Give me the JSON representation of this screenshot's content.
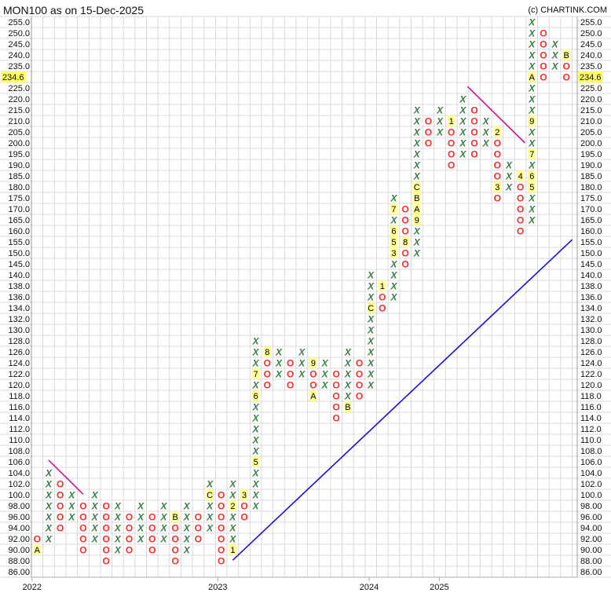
{
  "chart_data": {
    "type": "point-and-figure",
    "title": "MON100 as on 15-Dec-2025",
    "copyright": "(c) CHARTINK.COM",
    "current_price": "234.6",
    "price_levels": [
      255,
      250,
      245,
      240,
      235,
      230,
      225,
      220,
      215,
      210,
      205,
      200,
      195,
      190,
      185,
      180,
      175,
      170,
      165,
      160,
      155,
      150,
      145,
      140,
      138,
      136,
      134,
      132,
      130,
      128,
      126,
      124,
      122,
      120,
      118,
      116,
      114,
      112,
      110,
      108,
      106,
      104,
      102,
      100,
      98,
      96,
      94,
      92,
      90,
      88,
      86
    ],
    "x_labels": [
      "2022",
      "2023",
      "2024",
      "2025"
    ],
    "columns": [
      {
        "type": "O",
        "top": 92,
        "bottom": 90,
        "markers": {
          "90": "A"
        }
      },
      {
        "type": "X",
        "top": 104,
        "bottom": 92,
        "markers": {}
      },
      {
        "type": "O",
        "top": 102,
        "bottom": 94,
        "markers": {}
      },
      {
        "type": "X",
        "top": 100,
        "bottom": 96,
        "markers": {}
      },
      {
        "type": "O",
        "top": 98,
        "bottom": 90,
        "markers": {}
      },
      {
        "type": "X",
        "top": 100,
        "bottom": 92,
        "markers": {}
      },
      {
        "type": "O",
        "top": 98,
        "bottom": 88,
        "markers": {}
      },
      {
        "type": "X",
        "top": 98,
        "bottom": 90,
        "markers": {}
      },
      {
        "type": "O",
        "top": 96,
        "bottom": 90,
        "markers": {}
      },
      {
        "type": "X",
        "top": 98,
        "bottom": 92,
        "markers": {}
      },
      {
        "type": "O",
        "top": 96,
        "bottom": 90,
        "markers": {}
      },
      {
        "type": "X",
        "top": 98,
        "bottom": 92,
        "markers": {}
      },
      {
        "type": "O",
        "top": 96,
        "bottom": 88,
        "markers": {
          "96": "B"
        }
      },
      {
        "type": "X",
        "top": 98,
        "bottom": 90,
        "markers": {}
      },
      {
        "type": "O",
        "top": 96,
        "bottom": 92,
        "markers": {}
      },
      {
        "type": "X",
        "top": 102,
        "bottom": 94,
        "markers": {
          "100": "C"
        }
      },
      {
        "type": "O",
        "top": 100,
        "bottom": 88,
        "markers": {}
      },
      {
        "type": "X",
        "top": 102,
        "bottom": 90,
        "markers": {
          "90": "1",
          "98": "2"
        }
      },
      {
        "type": "O",
        "top": 100,
        "bottom": 96,
        "markers": {
          "100": "3"
        }
      },
      {
        "type": "X",
        "top": 128,
        "bottom": 98,
        "markers": {
          "106": "5",
          "118": "6",
          "122": "7"
        }
      },
      {
        "type": "O",
        "top": 126,
        "bottom": 120,
        "markers": {
          "126": "8"
        }
      },
      {
        "type": "X",
        "top": 126,
        "bottom": 122,
        "markers": {}
      },
      {
        "type": "O",
        "top": 124,
        "bottom": 120,
        "markers": {}
      },
      {
        "type": "X",
        "top": 126,
        "bottom": 122,
        "markers": {}
      },
      {
        "type": "O",
        "top": 124,
        "bottom": 118,
        "markers": {
          "124": "9",
          "118": "A"
        }
      },
      {
        "type": "X",
        "top": 124,
        "bottom": 120,
        "markers": {}
      },
      {
        "type": "O",
        "top": 122,
        "bottom": 114,
        "markers": {}
      },
      {
        "type": "X",
        "top": 126,
        "bottom": 116,
        "markers": {
          "116": "B"
        }
      },
      {
        "type": "O",
        "top": 124,
        "bottom": 118,
        "markers": {}
      },
      {
        "type": "X",
        "top": 140,
        "bottom": 120,
        "markers": {
          "134": "C"
        }
      },
      {
        "type": "O",
        "top": 138,
        "bottom": 134,
        "markers": {
          "138": "1"
        }
      },
      {
        "type": "X",
        "top": 175,
        "bottom": 136,
        "markers": {
          "150": "3",
          "155": "5",
          "160": "6",
          "170": "7"
        }
      },
      {
        "type": "O",
        "top": 170,
        "bottom": 145,
        "markers": {
          "155": "8"
        }
      },
      {
        "type": "X",
        "top": 215,
        "bottom": 150,
        "markers": {
          "165": "9",
          "170": "A",
          "175": "B",
          "180": "C"
        }
      },
      {
        "type": "O",
        "top": 210,
        "bottom": 200,
        "markers": {}
      },
      {
        "type": "X",
        "top": 215,
        "bottom": 205,
        "markers": {}
      },
      {
        "type": "O",
        "top": 210,
        "bottom": 190,
        "markers": {
          "210": "1"
        }
      },
      {
        "type": "X",
        "top": 220,
        "bottom": 195,
        "markers": {}
      },
      {
        "type": "O",
        "top": 215,
        "bottom": 195,
        "markers": {}
      },
      {
        "type": "X",
        "top": 210,
        "bottom": 200,
        "markers": {}
      },
      {
        "type": "O",
        "top": 205,
        "bottom": 175,
        "markers": {
          "205": "2",
          "180": "3"
        }
      },
      {
        "type": "X",
        "top": 190,
        "bottom": 180,
        "markers": {}
      },
      {
        "type": "O",
        "top": 185,
        "bottom": 160,
        "markers": {
          "185": "4"
        }
      },
      {
        "type": "X",
        "top": 255,
        "bottom": 165,
        "markers": {
          "180": "5",
          "185": "6",
          "195": "7",
          "210": "9",
          "230": "A"
        }
      },
      {
        "type": "O",
        "top": 250,
        "bottom": 230,
        "markers": {}
      },
      {
        "type": "X",
        "top": 245,
        "bottom": 235,
        "markers": {}
      },
      {
        "type": "O",
        "top": 240,
        "bottom": 230,
        "markers": {
          "240": "B"
        }
      }
    ],
    "trend_lines": [
      {
        "name": "resistance-line-2022",
        "color": "#cc1199",
        "from": {
          "column": 1.5,
          "price": 106.3
        },
        "to": {
          "column": 4.5,
          "price": 100.1
        }
      },
      {
        "name": "resistance-line-2025",
        "color": "#cc1199",
        "from": {
          "column": 37.9,
          "price": 225.7
        },
        "to": {
          "column": 42.9,
          "price": 200
        }
      },
      {
        "name": "support-line",
        "color": "#1a10e0",
        "from": {
          "column": 17.5,
          "price": 88.1
        },
        "to": {
          "column": 47,
          "price": 156
        }
      }
    ],
    "colors": {
      "x": "#3a7d44",
      "o": "#ff2a2a",
      "marker_bg": "#ffff99",
      "grid": "#d8d8d8",
      "price_highlight": "#ffff66"
    }
  }
}
